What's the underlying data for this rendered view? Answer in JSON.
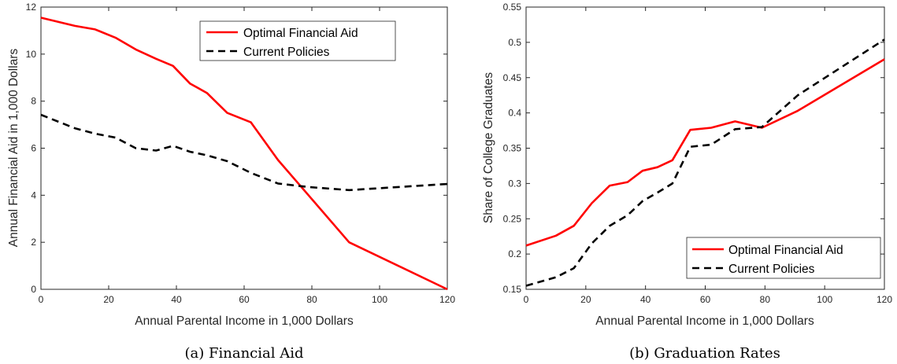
{
  "chart_data": [
    {
      "type": "line",
      "caption": "(a) Financial Aid",
      "xlabel": "Annual Parental Income in 1,000 Dollars",
      "ylabel": "Annual Financial Aid in 1,000 Dollars",
      "xlim": [
        0,
        120
      ],
      "ylim": [
        0,
        12
      ],
      "xticks": [
        0,
        20,
        40,
        60,
        80,
        100,
        120
      ],
      "yticks": [
        0,
        2,
        4,
        6,
        8,
        10,
        12
      ],
      "ytick_labels": [
        "0",
        "2",
        "4",
        "6",
        "8",
        "10",
        "12"
      ],
      "grid": false,
      "legend_position": "top-right",
      "series": [
        {
          "name": "Optimal Financial Aid",
          "color": "#ff0000",
          "style": "solid",
          "x": [
            0,
            10,
            16,
            22,
            28,
            34,
            39,
            44,
            49,
            55,
            62,
            70,
            79,
            91,
            120
          ],
          "y": [
            11.55,
            11.2,
            11.05,
            10.7,
            10.2,
            9.8,
            9.5,
            8.75,
            8.35,
            7.5,
            7.1,
            5.5,
            4.0,
            2.0,
            0.0
          ]
        },
        {
          "name": "Current Policies",
          "color": "#000000",
          "style": "dashed",
          "x": [
            0,
            10,
            16,
            22,
            28,
            34,
            39,
            44,
            49,
            55,
            62,
            70,
            79,
            91,
            120
          ],
          "y": [
            7.42,
            6.85,
            6.62,
            6.45,
            6.0,
            5.9,
            6.1,
            5.85,
            5.7,
            5.45,
            4.95,
            4.5,
            4.35,
            4.22,
            4.48
          ]
        }
      ]
    },
    {
      "type": "line",
      "caption": "(b) Graduation Rates",
      "xlabel": "Annual Parental Income in 1,000 Dollars",
      "ylabel": "Share of College Graduates",
      "xlim": [
        0,
        120
      ],
      "ylim": [
        0.15,
        0.55
      ],
      "xticks": [
        0,
        20,
        40,
        60,
        80,
        100,
        120
      ],
      "yticks": [
        0.15,
        0.2,
        0.25,
        0.3,
        0.35,
        0.4,
        0.45,
        0.5,
        0.55
      ],
      "ytick_labels": [
        "0.15",
        "0.2",
        "0.25",
        "0.3",
        "0.35",
        "0.4",
        "0.45",
        "0.5",
        "0.55"
      ],
      "grid": false,
      "legend_position": "bottom-right",
      "series": [
        {
          "name": "Optimal Financial Aid",
          "color": "#ff0000",
          "style": "solid",
          "x": [
            0,
            10,
            16,
            22,
            28,
            34,
            39,
            44,
            49,
            55,
            62,
            70,
            79,
            91,
            120
          ],
          "y": [
            0.212,
            0.226,
            0.24,
            0.272,
            0.297,
            0.302,
            0.318,
            0.323,
            0.333,
            0.376,
            0.379,
            0.388,
            0.379,
            0.403,
            0.476
          ]
        },
        {
          "name": "Current Policies",
          "color": "#000000",
          "style": "dashed",
          "x": [
            0,
            10,
            16,
            22,
            28,
            34,
            39,
            44,
            49,
            55,
            62,
            70,
            79,
            91,
            120
          ],
          "y": [
            0.155,
            0.167,
            0.18,
            0.215,
            0.24,
            0.255,
            0.275,
            0.287,
            0.3,
            0.352,
            0.355,
            0.377,
            0.38,
            0.425,
            0.504
          ]
        }
      ]
    }
  ]
}
